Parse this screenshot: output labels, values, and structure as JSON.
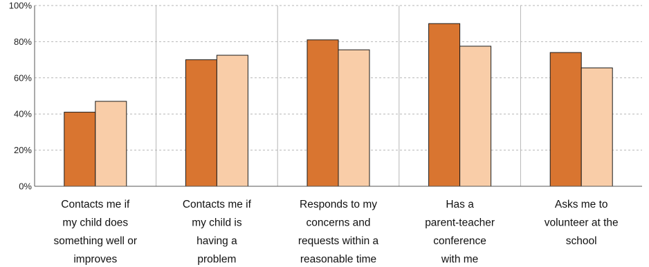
{
  "chart_data": {
    "type": "bar",
    "categories": [
      [
        "Contacts me if",
        "my child does",
        "something well or",
        "improves"
      ],
      [
        "Contacts me if",
        "my child is",
        "having a",
        "problem"
      ],
      [
        "Responds to my",
        "concerns and",
        "requests within a",
        "reasonable time"
      ],
      [
        "Has a",
        "parent-teacher",
        "conference",
        "with me"
      ],
      [
        "Asks me to",
        "volunteer at the",
        "school"
      ]
    ],
    "series": [
      {
        "values": [
          41,
          70,
          81,
          90,
          74
        ]
      },
      {
        "values": [
          47,
          72.5,
          75.5,
          77.5,
          65.5
        ]
      }
    ],
    "colors": [
      "#d97530",
      "#f9cda8"
    ],
    "ylim": [
      0,
      100
    ],
    "y_ticks": [
      0,
      20,
      40,
      60,
      80,
      100
    ],
    "y_tick_format": "%",
    "grid": true
  }
}
